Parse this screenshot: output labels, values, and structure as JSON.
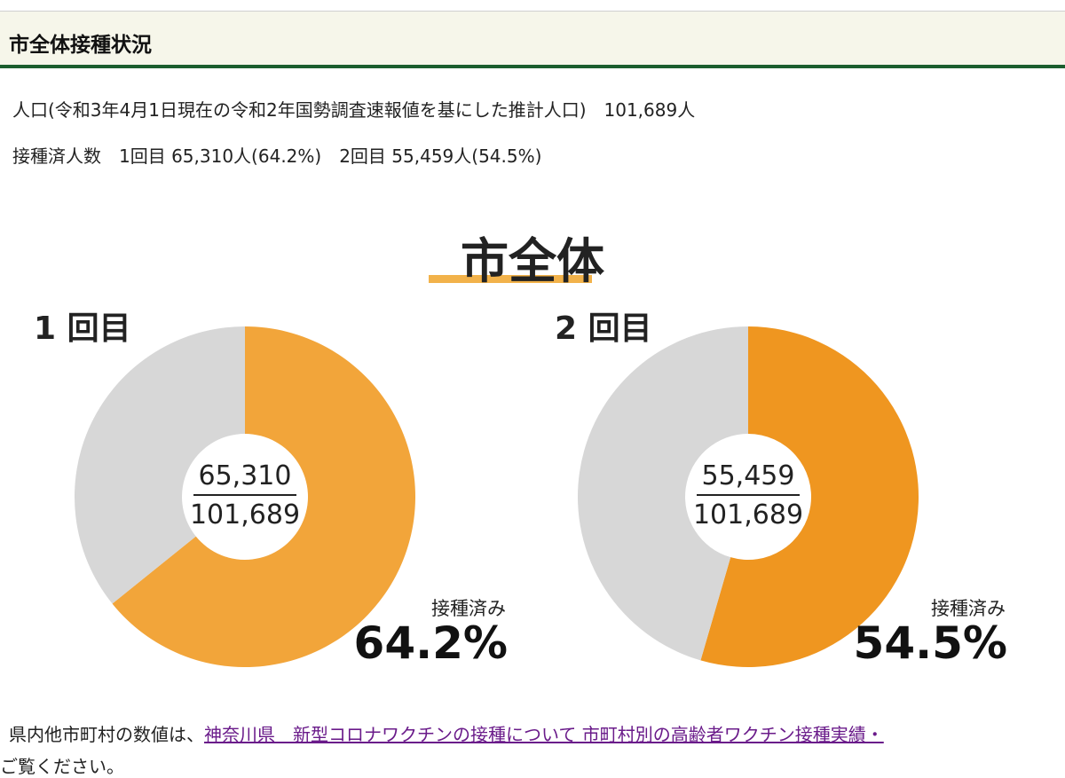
{
  "header": {
    "title": "市全体接種状況"
  },
  "info": {
    "population_line": "人口(令和3年4月1日現在の令和2年国勢調査速報値を基にした推計人口)　101,689人",
    "vaccinated_line": "接種済人数　1回目 65,310人(64.2%)　2回目 55,459人(54.5%)"
  },
  "chart_data": [
    {
      "type": "pie",
      "title": "市全体",
      "subtitle": "1 回目",
      "labels": [
        "接種済み",
        ""
      ],
      "values": [
        64.2,
        35.8
      ],
      "numerator": "65,310",
      "denominator": "101,689",
      "center_value": "64.2%",
      "colors": [
        "#f2a53a",
        "#d7d7d7"
      ]
    },
    {
      "type": "pie",
      "title": "市全体",
      "subtitle": "2 回目",
      "labels": [
        "接種済み",
        ""
      ],
      "values": [
        54.5,
        45.5
      ],
      "numerator": "55,459",
      "denominator": "101,689",
      "center_value": "54.5%",
      "colors": [
        "#ef9620",
        "#d7d7d7"
      ]
    }
  ],
  "footer": {
    "text": "県内他市町村の数値は、",
    "link": "神奈川県　新型コロナワクチンの接種について 市町村別の高齢者ワクチン接種実績・",
    "text2": "ご覧ください。"
  }
}
